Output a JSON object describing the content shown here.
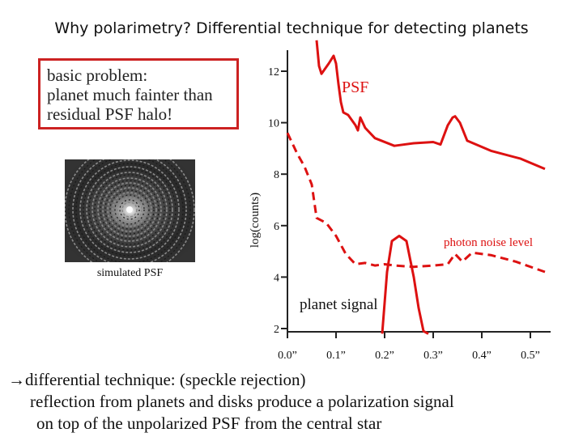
{
  "slide": {
    "title": "Why polarimetry? Differential technique for detecting planets",
    "problem_lines": [
      "basic problem:",
      "planet much fainter than",
      "residual PSF halo!"
    ],
    "image_caption": "simulated PSF",
    "bottom_lines": [
      "differential technique: (speckle rejection)",
      "reflection from planets and disks produce a polarization signal",
      "on top of the unpolarized PSF from the central star"
    ],
    "arrow_glyph": "→"
  },
  "colors": {
    "psf": "#dd1111",
    "noise": "#dd1111",
    "planet": "#dd1111",
    "box": "#cc2222",
    "axis": "#222222"
  },
  "chart_data": {
    "type": "line",
    "title": "",
    "xlabel": "",
    "ylabel": "log(counts)",
    "xlim": [
      0.0,
      0.55
    ],
    "ylim": [
      2,
      13
    ],
    "x_ticks": [
      0.0,
      0.1,
      0.2,
      0.3,
      0.4,
      0.5
    ],
    "x_tick_labels": [
      "0.0”",
      "0.1”",
      "0.2”",
      "0.3”",
      "0.4”",
      "0.5”"
    ],
    "y_ticks": [
      2,
      4,
      6,
      8,
      10,
      12
    ],
    "y_tick_labels": [
      "2",
      "4",
      "6",
      "8",
      "10",
      "12"
    ],
    "series": [
      {
        "name": "PSF",
        "style": "solid",
        "x": [
          0.06,
          0.065,
          0.07,
          0.085,
          0.095,
          0.1,
          0.105,
          0.11,
          0.115,
          0.125,
          0.14,
          0.145,
          0.15,
          0.16,
          0.18,
          0.22,
          0.26,
          0.3,
          0.315,
          0.32,
          0.33,
          0.34,
          0.345,
          0.355,
          0.37,
          0.42,
          0.48,
          0.53
        ],
        "values": [
          13.2,
          12.2,
          11.9,
          12.3,
          12.6,
          12.3,
          11.5,
          10.8,
          10.4,
          10.3,
          9.9,
          9.7,
          10.2,
          9.8,
          9.4,
          9.1,
          9.2,
          9.25,
          9.15,
          9.4,
          9.9,
          10.2,
          10.25,
          10.0,
          9.3,
          8.9,
          8.6,
          8.2
        ]
      },
      {
        "name": "photon noise level",
        "style": "dashed",
        "x": [
          0.0,
          0.02,
          0.035,
          0.05,
          0.06,
          0.08,
          0.1,
          0.12,
          0.14,
          0.16,
          0.18,
          0.2,
          0.22,
          0.26,
          0.3,
          0.33,
          0.345,
          0.36,
          0.38,
          0.42,
          0.47,
          0.53
        ],
        "values": [
          9.6,
          8.8,
          8.3,
          7.6,
          6.3,
          6.1,
          5.6,
          4.9,
          4.5,
          4.55,
          4.45,
          4.5,
          4.45,
          4.4,
          4.45,
          4.5,
          4.9,
          4.6,
          4.95,
          4.85,
          4.6,
          4.2
        ]
      },
      {
        "name": "planet signal",
        "style": "solid",
        "x": [
          0.195,
          0.2,
          0.205,
          0.215,
          0.23,
          0.245,
          0.26,
          0.27,
          0.28,
          0.29
        ],
        "values": [
          1.8,
          3.0,
          4.2,
          5.4,
          5.6,
          5.4,
          4.0,
          2.8,
          1.9,
          1.8
        ]
      }
    ],
    "annotations": [
      "PSF",
      "photon noise level",
      "planet signal"
    ]
  }
}
